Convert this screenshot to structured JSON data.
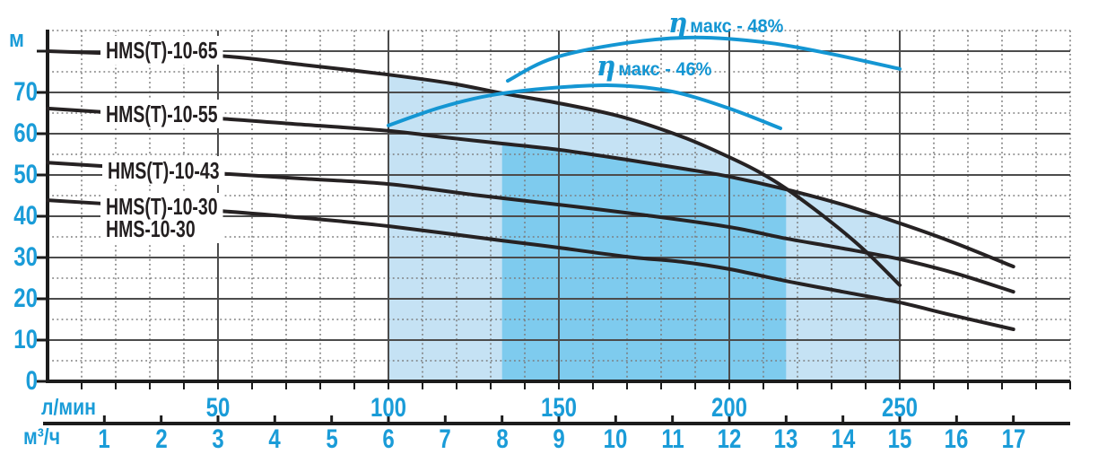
{
  "chart_data": {
    "type": "line",
    "title": "",
    "y_axis": {
      "unit": "м",
      "ticks": [
        0,
        10,
        20,
        30,
        40,
        50,
        60,
        70
      ],
      "range": [
        0,
        85
      ],
      "grid": "on"
    },
    "x_axis_lmin": {
      "unit": "л/мин",
      "ticks": [
        50,
        100,
        150,
        200,
        250
      ],
      "range": [
        0,
        300
      ]
    },
    "x_axis_m3h": {
      "unit": "м³/ч",
      "ticks": [
        1,
        2,
        3,
        4,
        5,
        6,
        7,
        8,
        9,
        10,
        11,
        12,
        13,
        14,
        15,
        16,
        17
      ],
      "range": [
        0,
        18
      ]
    },
    "series": [
      {
        "name": "HMS(T)-10-65",
        "label": "HMS(T)-10-65",
        "points": [
          [
            0,
            80
          ],
          [
            1.5,
            79.3
          ],
          [
            3,
            78.9
          ],
          [
            4.5,
            76.7
          ],
          [
            6,
            74.3
          ],
          [
            7.1,
            72.2
          ],
          [
            8,
            69.8
          ],
          [
            9,
            67.4
          ],
          [
            10.1,
            64.1
          ],
          [
            11.2,
            59.1
          ],
          [
            12,
            54.3
          ],
          [
            12.5,
            50.9
          ],
          [
            13,
            46.7
          ],
          [
            13.8,
            38.5
          ],
          [
            14.4,
            31.5
          ],
          [
            15,
            23.3
          ]
        ]
      },
      {
        "name": "HMS(T)-10-55",
        "label": "HMS(T)-10-55",
        "points": [
          [
            0,
            66.1
          ],
          [
            1.5,
            64.8
          ],
          [
            3,
            63.7
          ],
          [
            4.5,
            62.2
          ],
          [
            6,
            60.7
          ],
          [
            7,
            59.1
          ],
          [
            8,
            57.6
          ],
          [
            9,
            56.1
          ],
          [
            10.2,
            53.7
          ],
          [
            11.2,
            51.5
          ],
          [
            12,
            49.6
          ],
          [
            13,
            46.5
          ],
          [
            14,
            42.8
          ],
          [
            15,
            38.3
          ],
          [
            15.9,
            33.9
          ],
          [
            17,
            27.8
          ]
        ]
      },
      {
        "name": "HMS(T)-10-43",
        "label": "HMS(T)-10-43",
        "points": [
          [
            0,
            53
          ],
          [
            1.5,
            51.7
          ],
          [
            3,
            50.4
          ],
          [
            4.5,
            49.1
          ],
          [
            6,
            47.8
          ],
          [
            7.5,
            45.2
          ],
          [
            9,
            42.8
          ],
          [
            10.5,
            40.3
          ],
          [
            12,
            37.4
          ],
          [
            13,
            34.6
          ],
          [
            14,
            32.2
          ],
          [
            15,
            29.6
          ],
          [
            16,
            26.1
          ],
          [
            17,
            21.7
          ]
        ]
      },
      {
        "name": "HMS(T)-10-30",
        "label": "HMS(T)-10-30",
        "label2": "HMS-10-30",
        "points": [
          [
            0,
            43.9
          ],
          [
            1.5,
            42.6
          ],
          [
            3,
            41.3
          ],
          [
            4.5,
            39.6
          ],
          [
            6,
            37.6
          ],
          [
            8,
            34.1
          ],
          [
            9,
            32.4
          ],
          [
            10.2,
            30.2
          ],
          [
            11.2,
            28.9
          ],
          [
            12,
            27.2
          ],
          [
            13,
            24.3
          ],
          [
            14,
            21.7
          ],
          [
            15,
            19.1
          ],
          [
            15.9,
            16.1
          ],
          [
            17,
            12.6
          ]
        ]
      }
    ],
    "efficiency_curves": [
      {
        "name": "eta-max-48",
        "symbol": "η",
        "label": "макс - 48%",
        "points": [
          [
            8.1,
            72.8
          ],
          [
            8.9,
            78.3
          ],
          [
            10.2,
            82
          ],
          [
            11.4,
            83.3
          ],
          [
            12.7,
            82
          ],
          [
            13.8,
            79.3
          ],
          [
            15,
            75.7
          ]
        ]
      },
      {
        "name": "eta-max-46",
        "symbol": "η",
        "label": "макс - 46%",
        "points": [
          [
            6,
            62
          ],
          [
            6.9,
            66.3
          ],
          [
            7.8,
            69.3
          ],
          [
            8.9,
            71.1
          ],
          [
            10,
            71.7
          ],
          [
            11,
            70.2
          ],
          [
            12,
            66.1
          ],
          [
            12.9,
            61.3
          ]
        ]
      }
    ],
    "regions": [
      {
        "name": "operating-range-light",
        "color": "#c5e2f4",
        "q_from": 6,
        "q_to": 15,
        "top_series": [
          "HMS(T)-10-65",
          "HMS(T)-10-55"
        ]
      },
      {
        "name": "operating-range-dark",
        "color": "#7ecbee",
        "q_from": 8,
        "q_to": 13,
        "top_series": [
          "HMS(T)-10-55"
        ]
      }
    ],
    "colors": {
      "accent_blue": "#1a9cd8",
      "efficiency_blue": "#1496d3",
      "curve_black": "#262223",
      "fill_light": "#c5e2f4",
      "fill_dark": "#7ecbee"
    }
  }
}
